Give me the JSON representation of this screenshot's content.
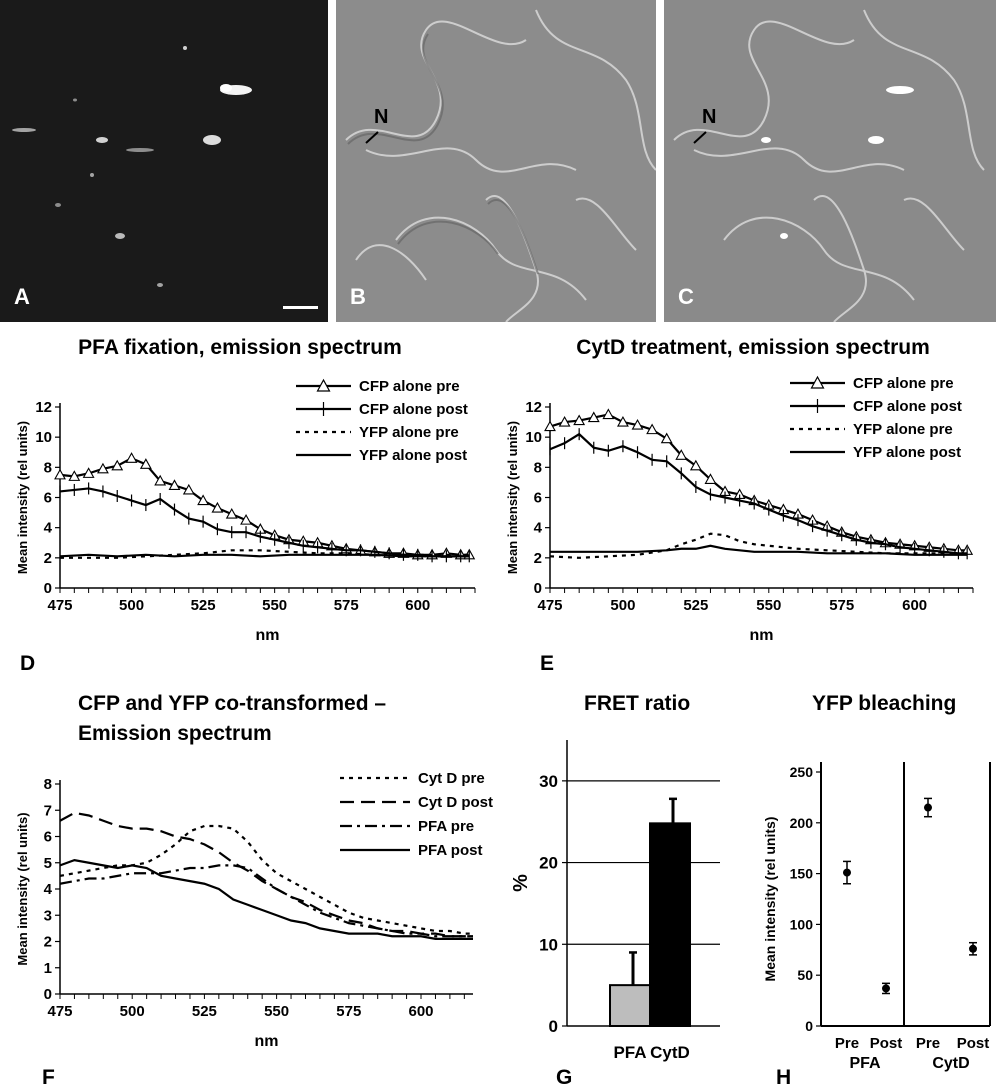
{
  "photos": {
    "a_label": "A",
    "b_label": "B",
    "c_label": "C",
    "b_marker": "N",
    "c_marker": "N"
  },
  "panel_letters": {
    "d": "D",
    "e": "E",
    "f": "F",
    "g": "G",
    "h": "H"
  },
  "chart_data": [
    {
      "id": "D",
      "type": "line",
      "title": "PFA fixation, emission spectrum",
      "xlabel": "nm",
      "ylabel": "Mean intensity (rel units)",
      "xlim": [
        475,
        620
      ],
      "ylim": [
        0,
        12
      ],
      "xticks": [
        475,
        500,
        525,
        550,
        575,
        600
      ],
      "yticks": [
        0,
        2,
        4,
        6,
        8,
        10,
        12
      ],
      "legend_position": "top-right",
      "series": [
        {
          "name": "CFP alone pre",
          "style": "triangle",
          "x": [
            475,
            480,
            485,
            490,
            495,
            500,
            505,
            510,
            515,
            520,
            525,
            530,
            535,
            540,
            545,
            550,
            555,
            560,
            565,
            570,
            575,
            580,
            585,
            590,
            595,
            600,
            605,
            610,
            615,
            618
          ],
          "y": [
            7.5,
            7.4,
            7.6,
            7.9,
            8.1,
            8.6,
            8.2,
            7.1,
            6.8,
            6.5,
            5.8,
            5.3,
            4.9,
            4.5,
            3.9,
            3.5,
            3.2,
            3.1,
            3.0,
            2.8,
            2.6,
            2.5,
            2.4,
            2.3,
            2.3,
            2.2,
            2.2,
            2.3,
            2.2,
            2.2
          ]
        },
        {
          "name": "CFP alone post",
          "style": "plus",
          "x": [
            475,
            480,
            485,
            490,
            495,
            500,
            505,
            510,
            515,
            520,
            525,
            530,
            535,
            540,
            545,
            550,
            555,
            560,
            565,
            570,
            575,
            580,
            585,
            590,
            595,
            600,
            605,
            610,
            615,
            618
          ],
          "y": [
            6.4,
            6.5,
            6.6,
            6.4,
            6.1,
            5.8,
            5.5,
            5.9,
            5.2,
            4.6,
            4.4,
            3.9,
            3.7,
            3.7,
            3.4,
            3.2,
            3.0,
            2.8,
            2.7,
            2.6,
            2.5,
            2.5,
            2.4,
            2.3,
            2.2,
            2.2,
            2.1,
            2.1,
            2.1,
            2.1
          ]
        },
        {
          "name": "YFP alone pre",
          "style": "dotted",
          "x": [
            475,
            485,
            495,
            505,
            515,
            525,
            535,
            545,
            555,
            565,
            575,
            585,
            595,
            605,
            618
          ],
          "y": [
            2.0,
            2.0,
            2.0,
            2.1,
            2.2,
            2.3,
            2.5,
            2.5,
            2.4,
            2.3,
            2.3,
            2.2,
            2.2,
            2.2,
            2.2
          ]
        },
        {
          "name": "YFP alone post",
          "style": "solid",
          "x": [
            475,
            485,
            495,
            505,
            515,
            525,
            535,
            545,
            555,
            565,
            575,
            585,
            595,
            605,
            618
          ],
          "y": [
            2.1,
            2.2,
            2.1,
            2.2,
            2.1,
            2.2,
            2.2,
            2.1,
            2.2,
            2.2,
            2.2,
            2.2,
            2.1,
            2.1,
            2.1
          ]
        }
      ]
    },
    {
      "id": "E",
      "type": "line",
      "title": "CytD treatment, emission spectrum",
      "xlabel": "nm",
      "ylabel": "Mean intensity (rel units)",
      "xlim": [
        475,
        620
      ],
      "ylim": [
        0,
        12
      ],
      "xticks": [
        475,
        500,
        525,
        550,
        575,
        600
      ],
      "yticks": [
        0,
        2,
        4,
        6,
        8,
        10,
        12
      ],
      "legend_position": "top-right",
      "series": [
        {
          "name": "CFP alone pre",
          "style": "triangle",
          "x": [
            475,
            480,
            485,
            490,
            495,
            500,
            505,
            510,
            515,
            520,
            525,
            530,
            535,
            540,
            545,
            550,
            555,
            560,
            565,
            570,
            575,
            580,
            585,
            590,
            595,
            600,
            605,
            610,
            615,
            618
          ],
          "y": [
            10.7,
            11.0,
            11.1,
            11.3,
            11.5,
            11.0,
            10.8,
            10.5,
            9.9,
            8.8,
            8.1,
            7.2,
            6.4,
            6.2,
            5.8,
            5.5,
            5.2,
            4.9,
            4.5,
            4.1,
            3.7,
            3.4,
            3.2,
            3.0,
            2.9,
            2.8,
            2.7,
            2.6,
            2.5,
            2.5
          ]
        },
        {
          "name": "CFP alone post",
          "style": "plus",
          "x": [
            475,
            480,
            485,
            490,
            495,
            500,
            505,
            510,
            515,
            520,
            525,
            530,
            535,
            540,
            545,
            550,
            555,
            560,
            565,
            570,
            575,
            580,
            585,
            590,
            595,
            600,
            605,
            610,
            615,
            618
          ],
          "y": [
            9.2,
            9.6,
            10.2,
            9.3,
            9.1,
            9.4,
            9.0,
            8.5,
            8.4,
            7.6,
            6.7,
            6.2,
            6.0,
            5.8,
            5.6,
            5.2,
            4.8,
            4.5,
            4.1,
            3.8,
            3.5,
            3.2,
            3.0,
            2.9,
            2.7,
            2.6,
            2.5,
            2.4,
            2.3,
            2.3
          ]
        },
        {
          "name": "YFP alone pre",
          "style": "dotted",
          "x": [
            475,
            485,
            495,
            505,
            515,
            520,
            525,
            530,
            535,
            540,
            545,
            550,
            560,
            570,
            580,
            590,
            600,
            610,
            618
          ],
          "y": [
            2.1,
            2.0,
            2.1,
            2.2,
            2.5,
            2.9,
            3.2,
            3.6,
            3.5,
            3.1,
            2.9,
            2.8,
            2.6,
            2.5,
            2.4,
            2.3,
            2.3,
            2.3,
            2.2
          ]
        },
        {
          "name": "YFP alone post",
          "style": "solid",
          "x": [
            475,
            485,
            495,
            505,
            515,
            520,
            525,
            530,
            535,
            540,
            545,
            550,
            560,
            570,
            580,
            590,
            600,
            610,
            618
          ],
          "y": [
            2.4,
            2.4,
            2.4,
            2.4,
            2.5,
            2.6,
            2.6,
            2.8,
            2.6,
            2.5,
            2.4,
            2.4,
            2.4,
            2.3,
            2.3,
            2.3,
            2.2,
            2.2,
            2.2
          ]
        }
      ]
    },
    {
      "id": "F",
      "type": "line",
      "title": "CFP and YFP co-transformed –",
      "subtitle": "Emission spectrum",
      "xlabel": "nm",
      "ylabel": "Mean intensity (rel units)",
      "xlim": [
        475,
        618
      ],
      "ylim": [
        0,
        8
      ],
      "xticks": [
        475,
        500,
        525,
        550,
        575,
        600
      ],
      "yticks": [
        0,
        1,
        2,
        3,
        4,
        5,
        6,
        7,
        8
      ],
      "legend_position": "top-right",
      "series": [
        {
          "name": "Cyt D pre",
          "style": "dotted",
          "x": [
            475,
            480,
            485,
            490,
            495,
            500,
            505,
            510,
            515,
            520,
            525,
            530,
            535,
            540,
            545,
            550,
            555,
            560,
            565,
            570,
            575,
            580,
            585,
            590,
            595,
            600,
            605,
            610,
            615,
            618
          ],
          "y": [
            4.5,
            4.6,
            4.7,
            4.8,
            4.9,
            4.9,
            5.0,
            5.3,
            5.7,
            6.2,
            6.4,
            6.4,
            6.3,
            5.8,
            5.1,
            4.6,
            4.3,
            4.0,
            3.7,
            3.4,
            3.1,
            2.9,
            2.8,
            2.7,
            2.6,
            2.5,
            2.4,
            2.4,
            2.3,
            2.3
          ]
        },
        {
          "name": "Cyt D post",
          "style": "dashed",
          "x": [
            475,
            480,
            485,
            490,
            495,
            500,
            505,
            510,
            515,
            520,
            525,
            530,
            535,
            540,
            545,
            550,
            555,
            560,
            565,
            570,
            575,
            580,
            585,
            590,
            595,
            600,
            605,
            610,
            615,
            618
          ],
          "y": [
            6.6,
            6.9,
            6.8,
            6.6,
            6.4,
            6.3,
            6.3,
            6.2,
            6.0,
            5.9,
            5.7,
            5.4,
            5.0,
            4.7,
            4.3,
            4.0,
            3.7,
            3.5,
            3.2,
            3.0,
            2.8,
            2.7,
            2.5,
            2.4,
            2.4,
            2.3,
            2.3,
            2.2,
            2.2,
            2.2
          ]
        },
        {
          "name": "PFA pre",
          "style": "dashdot",
          "x": [
            475,
            480,
            485,
            490,
            495,
            500,
            505,
            510,
            515,
            520,
            525,
            530,
            535,
            540,
            545,
            550,
            555,
            560,
            565,
            570,
            575,
            580,
            585,
            590,
            595,
            600,
            605,
            610,
            615,
            618
          ],
          "y": [
            4.2,
            4.3,
            4.4,
            4.4,
            4.5,
            4.6,
            4.6,
            4.6,
            4.7,
            4.8,
            4.8,
            4.9,
            4.9,
            4.8,
            4.4,
            4.0,
            3.7,
            3.4,
            3.1,
            2.9,
            2.7,
            2.6,
            2.5,
            2.4,
            2.3,
            2.3,
            2.2,
            2.2,
            2.2,
            2.2
          ]
        },
        {
          "name": "PFA post",
          "style": "solid",
          "x": [
            475,
            480,
            485,
            490,
            495,
            500,
            505,
            510,
            515,
            520,
            525,
            530,
            535,
            540,
            545,
            550,
            555,
            560,
            565,
            570,
            575,
            580,
            585,
            590,
            595,
            600,
            605,
            610,
            615,
            618
          ],
          "y": [
            4.9,
            5.1,
            5.0,
            4.9,
            4.8,
            4.9,
            4.8,
            4.5,
            4.4,
            4.3,
            4.2,
            4.0,
            3.6,
            3.4,
            3.2,
            3.0,
            2.8,
            2.7,
            2.5,
            2.4,
            2.3,
            2.3,
            2.3,
            2.2,
            2.2,
            2.2,
            2.1,
            2.1,
            2.1,
            2.1
          ]
        }
      ]
    },
    {
      "id": "G",
      "type": "bar",
      "title": "FRET ratio",
      "ylabel": "%",
      "xlabel": "",
      "categories": [
        "PFA",
        "CytD"
      ],
      "values": [
        5,
        24.8
      ],
      "errors": [
        4,
        3
      ],
      "colors": [
        "#bdbdbd",
        "#000000"
      ],
      "ylim": [
        0,
        35
      ],
      "yticks": [
        0,
        10,
        20,
        30
      ],
      "grid": true
    },
    {
      "id": "H",
      "type": "scatter",
      "title": "YFP bleaching",
      "ylabel": "Mean intensity (rel units)",
      "xlabel": "",
      "groups": [
        "PFA",
        "CytD"
      ],
      "categories": [
        "Pre",
        "Post",
        "Pre",
        "Post"
      ],
      "values": [
        151,
        37,
        215,
        76
      ],
      "errors": [
        11,
        5,
        9,
        6
      ],
      "ylim": [
        0,
        250
      ],
      "yticks": [
        0,
        50,
        100,
        150,
        200,
        250
      ]
    }
  ]
}
